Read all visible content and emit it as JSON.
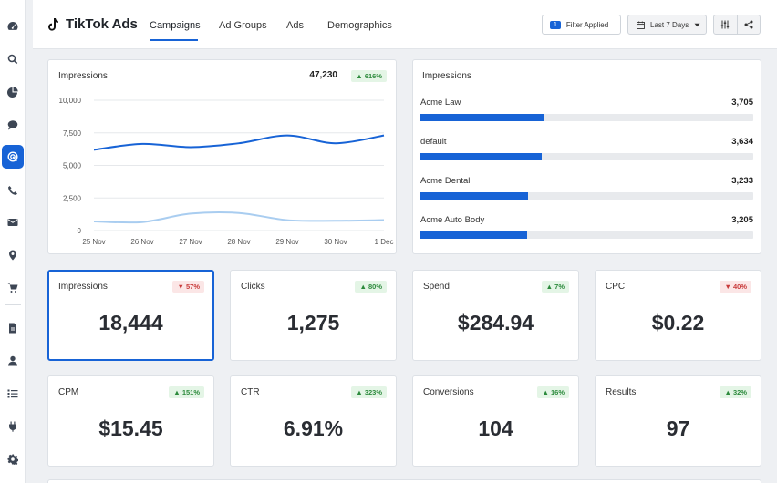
{
  "app": {
    "title": "TikTok Ads"
  },
  "tabs": [
    {
      "label": "Campaigns",
      "active": true
    },
    {
      "label": "Ad Groups"
    },
    {
      "label": "Ads"
    },
    {
      "label": "Demographics"
    }
  ],
  "toolbar": {
    "filter_count": "1",
    "filter_label": "Filter Applied",
    "date_range": "Last 7 Days"
  },
  "sidebar": {
    "icons": [
      "dashboard-icon",
      "search-icon",
      "pie-chart-icon",
      "chat-icon",
      "tiktok-target-icon",
      "phone-icon",
      "mail-icon",
      "location-pin-icon",
      "cart-icon",
      "document-icon",
      "user-icon",
      "list-icon",
      "plug-icon",
      "gear-icon"
    ],
    "active_index": 4
  },
  "chart_card": {
    "title": "Impressions",
    "total": "47,230",
    "badge": "616%"
  },
  "chart_data": {
    "type": "line",
    "x": [
      "25 Nov",
      "26 Nov",
      "27 Nov",
      "28 Nov",
      "29 Nov",
      "30 Nov",
      "1 Dec"
    ],
    "yticks": [
      "10,000",
      "7,500",
      "5,000",
      "2,500",
      "0"
    ],
    "ylim": [
      0,
      10000
    ],
    "series": [
      {
        "values": [
          6200,
          6650,
          6400,
          6700,
          7300,
          6700,
          7300
        ],
        "color": "#1763d6"
      },
      {
        "values": [
          700,
          650,
          1300,
          1350,
          800,
          750,
          800
        ],
        "color": "#a9cdf0"
      }
    ]
  },
  "bar_card": {
    "title": "Impressions",
    "max": 10000,
    "items": [
      {
        "label": "Acme Law",
        "value": "3,705",
        "num": 3705
      },
      {
        "label": "default",
        "value": "3,634",
        "num": 3634
      },
      {
        "label": "Acme Dental",
        "value": "3,233",
        "num": 3233
      },
      {
        "label": "Acme Auto Body",
        "value": "3,205",
        "num": 3205
      }
    ]
  },
  "metrics": [
    {
      "title": "Impressions",
      "value": "18,444",
      "badge": "57%",
      "dir": "down",
      "selected": true
    },
    {
      "title": "Clicks",
      "value": "1,275",
      "badge": "80%",
      "dir": "up"
    },
    {
      "title": "Spend",
      "value": "$284.94",
      "badge": "7%",
      "dir": "up"
    },
    {
      "title": "CPC",
      "value": "$0.22",
      "badge": "40%",
      "dir": "down"
    },
    {
      "title": "CPM",
      "value": "$15.45",
      "badge": "151%",
      "dir": "up"
    },
    {
      "title": "CTR",
      "value": "6.91%",
      "badge": "323%",
      "dir": "up"
    },
    {
      "title": "Conversions",
      "value": "104",
      "badge": "16%",
      "dir": "up"
    },
    {
      "title": "Results",
      "value": "97",
      "badge": "32%",
      "dir": "up"
    }
  ],
  "colors": {
    "accent": "#1763d6",
    "line_light": "#a9cdf0",
    "up": "#2c8a3c",
    "down": "#c83a3a"
  }
}
